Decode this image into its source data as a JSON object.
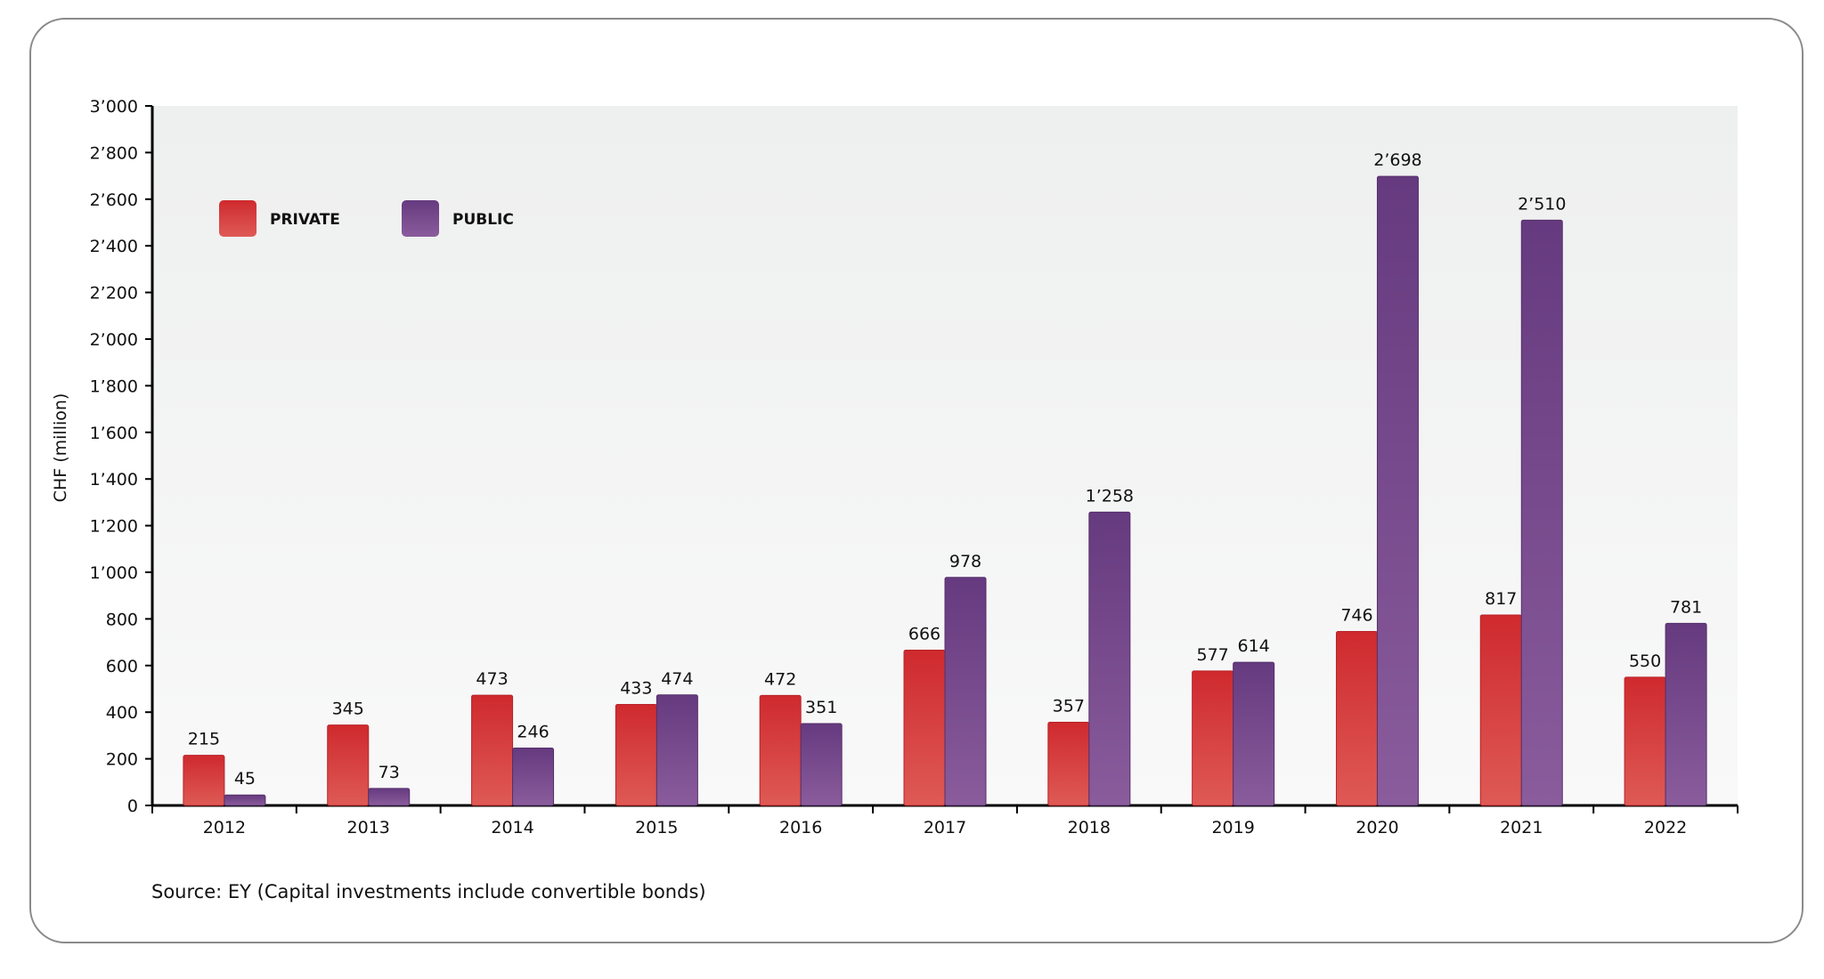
{
  "chart_data": {
    "type": "bar",
    "categories": [
      "2012",
      "2013",
      "2014",
      "2015",
      "2016",
      "2017",
      "2018",
      "2019",
      "2020",
      "2021",
      "2022"
    ],
    "series": [
      {
        "name": "PRIVATE",
        "color": "#cf2a2e",
        "values": [
          215,
          345,
          473,
          433,
          472,
          666,
          357,
          577,
          746,
          817,
          550
        ]
      },
      {
        "name": "PUBLIC",
        "color": "#663a7f",
        "values": [
          45,
          73,
          246,
          474,
          351,
          978,
          1258,
          614,
          2698,
          2510,
          781
        ]
      }
    ],
    "title": "",
    "xlabel": "",
    "ylabel": "CHF (million)",
    "ylim": [
      0,
      3000
    ],
    "yticks": [
      0,
      200,
      400,
      600,
      800,
      1000,
      1200,
      1400,
      1600,
      1800,
      2000,
      2200,
      2400,
      2600,
      2800,
      3000
    ],
    "thousands_separator": "’",
    "grid": false,
    "legend_position": "top-left",
    "data_labels": true
  },
  "source": "Source: EY (Capital investments include convertible bonds)"
}
